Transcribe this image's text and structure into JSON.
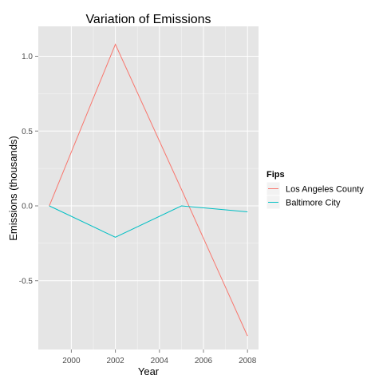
{
  "chart_data": {
    "type": "line",
    "title": "Variation of Emissions",
    "xlabel": "Year",
    "ylabel": "Emissions (thousands)",
    "x": [
      1999,
      2002,
      2005,
      2008
    ],
    "xlim": [
      1998.5,
      2008.5
    ],
    "ylim": [
      -0.96,
      1.2
    ],
    "xticks": [
      2000,
      2002,
      2004,
      2006,
      2008
    ],
    "xtick_labels": [
      "2000",
      "2002",
      "2004",
      "2006",
      "2008"
    ],
    "yticks": [
      -0.5,
      0.0,
      0.5,
      1.0
    ],
    "ytick_labels": [
      "-0.5",
      "0.0",
      "0.5",
      "1.0"
    ],
    "grid": true,
    "panel_background": "#e5e5e5",
    "grid_color": "#ffffff",
    "legend": {
      "title": "Fips",
      "placement": "right"
    },
    "series": [
      {
        "name": "Los Angeles County",
        "color": "#f8766d",
        "values": [
          0.0,
          1.08,
          0.11,
          -0.87
        ]
      },
      {
        "name": "Baltimore City",
        "color": "#00bfc4",
        "values": [
          0.0,
          -0.21,
          0.0,
          -0.04
        ]
      }
    ]
  }
}
